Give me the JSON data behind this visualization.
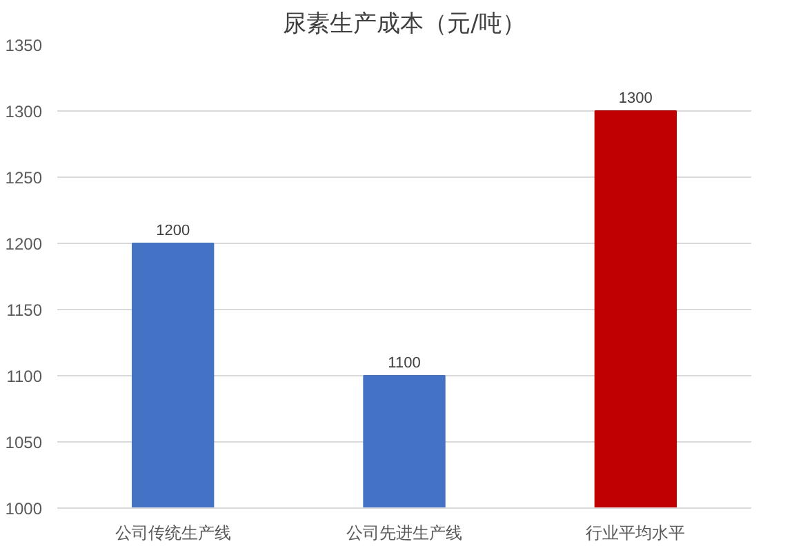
{
  "chart_data": {
    "type": "bar",
    "title": "尿素生产成本（元/吨）",
    "categories": [
      "公司传统生产线",
      "公司先进生产线",
      "行业平均水平"
    ],
    "values": [
      1200,
      1100,
      1300
    ],
    "colors": [
      "#4472c4",
      "#4472c4",
      "#c00000"
    ],
    "ylim": [
      1000,
      1350
    ],
    "yticks": [
      1000,
      1050,
      1100,
      1150,
      1200,
      1250,
      1300,
      1350
    ],
    "grid": "y",
    "data_labels": true
  }
}
